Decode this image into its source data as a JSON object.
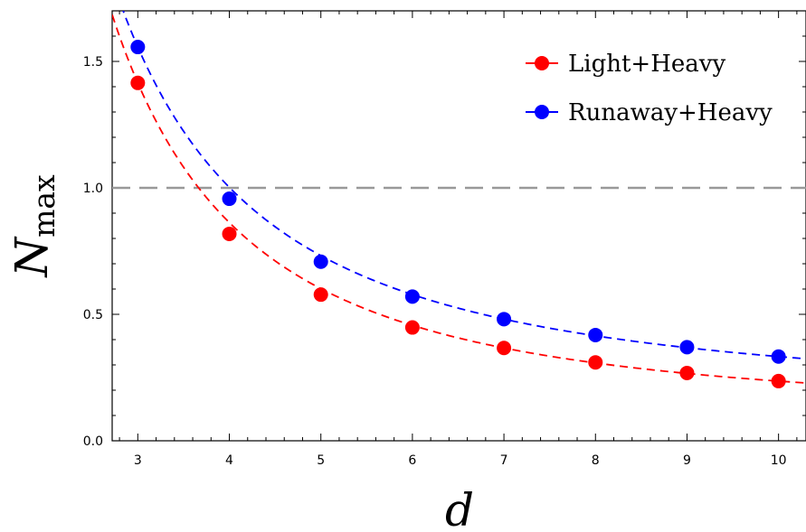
{
  "chart_data": {
    "type": "scatter",
    "xlabel": "d",
    "ylabel": {
      "main": "N",
      "sub": "max"
    },
    "xlim": [
      2.72,
      10.3
    ],
    "ylim": [
      0.0,
      1.7
    ],
    "x_ticks": [
      "3",
      "4",
      "5",
      "6",
      "7",
      "8",
      "9",
      "10"
    ],
    "y_ticks": [
      "0.0",
      "0.5",
      "1.0",
      "1.5"
    ],
    "reference_line": {
      "y": 1.0,
      "color": "#999999",
      "style": "dashed"
    },
    "legend_position": "top-right",
    "frame_ticks": "inward, all four sides",
    "grid": false,
    "series": [
      {
        "name": "Light+Heavy",
        "color": "#ff0000",
        "line_style": "dashed fit curve",
        "x": [
          3,
          4,
          5,
          6,
          7,
          8,
          9,
          10
        ],
        "y": [
          1.415,
          0.818,
          0.578,
          0.448,
          0.367,
          0.31,
          0.268,
          0.236
        ]
      },
      {
        "name": "Runaway+Heavy",
        "color": "#0000ff",
        "line_style": "dashed fit curve",
        "x": [
          3,
          4,
          5,
          6,
          7,
          8,
          9,
          10
        ],
        "y": [
          1.557,
          0.957,
          0.708,
          0.57,
          0.481,
          0.418,
          0.37,
          0.333
        ]
      }
    ]
  }
}
